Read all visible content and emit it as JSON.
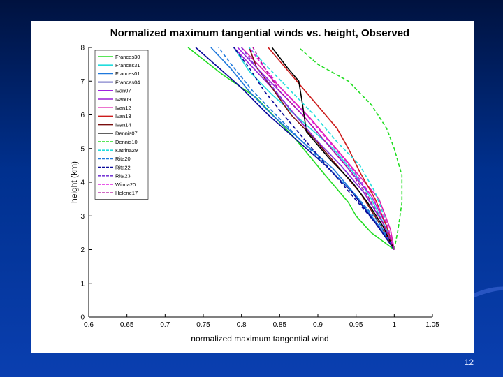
{
  "slide": {
    "page_number": "12"
  },
  "chart_data": {
    "type": "line",
    "title": "Normalized maximum tangential winds vs. height, Observed",
    "xlabel": "normalized maximum tangential wind",
    "ylabel": "height (km)",
    "xlim": [
      0.6,
      1.05
    ],
    "ylim": [
      0,
      8
    ],
    "xticks": [
      "0.6",
      "0.65",
      "0.7",
      "0.75",
      "0.8",
      "0.85",
      "0.9",
      "0.95",
      "1",
      "1.05"
    ],
    "yticks": [
      "0",
      "1",
      "2",
      "3",
      "4",
      "5",
      "6",
      "7",
      "8"
    ],
    "legend_position": "upper-left",
    "series": [
      {
        "name": "Frances30",
        "color": "#22dd22",
        "dash": "solid",
        "x": [
          1.0,
          0.97,
          0.95,
          0.94,
          0.91,
          0.87,
          0.82,
          0.775,
          0.73
        ],
        "y": [
          2,
          2.5,
          3.0,
          3.4,
          4.2,
          5.3,
          6.5,
          7.2,
          8
        ]
      },
      {
        "name": "Frances31",
        "color": "#22dddd",
        "dash": "solid",
        "x": [
          1.0,
          0.99,
          0.97,
          0.95,
          0.92,
          0.88,
          0.84,
          0.81,
          0.79
        ],
        "y": [
          2,
          2.6,
          3.5,
          4.2,
          5.0,
          5.8,
          6.6,
          7.3,
          8
        ]
      },
      {
        "name": "Frances01",
        "color": "#1e78dc",
        "dash": "solid",
        "x": [
          1.0,
          0.98,
          0.95,
          0.92,
          0.88,
          0.84,
          0.81,
          0.785,
          0.76
        ],
        "y": [
          2,
          2.7,
          3.6,
          4.4,
          5.2,
          6.0,
          6.7,
          7.4,
          8
        ]
      },
      {
        "name": "Frances04",
        "color": "#0a0a9a",
        "dash": "solid",
        "x": [
          1.0,
          0.975,
          0.945,
          0.91,
          0.87,
          0.835,
          0.8,
          0.77,
          0.74
        ],
        "y": [
          2,
          2.8,
          3.7,
          4.5,
          5.3,
          6.0,
          6.8,
          7.4,
          8
        ]
      },
      {
        "name": "Ivan07",
        "color": "#a020e0",
        "dash": "solid",
        "x": [
          1.0,
          0.99,
          0.97,
          0.94,
          0.91,
          0.88,
          0.85,
          0.82,
          0.795
        ],
        "y": [
          2,
          2.7,
          3.6,
          4.4,
          5.2,
          6.0,
          6.7,
          7.4,
          8
        ]
      },
      {
        "name": "Ivan09",
        "color": "#9b1fd6",
        "dash": "solid",
        "x": [
          1.0,
          0.985,
          0.96,
          0.93,
          0.9,
          0.87,
          0.84,
          0.815,
          0.79
        ],
        "y": [
          2,
          2.8,
          3.7,
          4.5,
          5.2,
          6.0,
          6.8,
          7.4,
          8
        ]
      },
      {
        "name": "Ivan12",
        "color": "#e020b0",
        "dash": "solid",
        "x": [
          1.0,
          0.995,
          0.98,
          0.95,
          0.92,
          0.89,
          0.86,
          0.83,
          0.8
        ],
        "y": [
          2,
          2.6,
          3.5,
          4.3,
          5.1,
          5.9,
          6.6,
          7.3,
          8
        ]
      },
      {
        "name": "Ivan13",
        "color": "#cc1b1b",
        "dash": "solid",
        "x": [
          1.0,
          0.99,
          0.975,
          0.955,
          0.94,
          0.925,
          0.895,
          0.865,
          0.835
        ],
        "y": [
          2,
          2.7,
          3.5,
          4.3,
          5.0,
          5.6,
          6.4,
          7.2,
          8
        ]
      },
      {
        "name": "Ivan14",
        "color": "#7a0f0f",
        "dash": "solid",
        "x": [
          1.0,
          0.98,
          0.955,
          0.925,
          0.895,
          0.865,
          0.84,
          0.82,
          0.81
        ],
        "y": [
          2,
          2.8,
          3.7,
          4.5,
          5.3,
          6.0,
          6.8,
          7.4,
          8
        ]
      },
      {
        "name": "Dennis07",
        "color": "#000000",
        "dash": "solid",
        "x": [
          1.0,
          0.985,
          0.965,
          0.945,
          0.915,
          0.885,
          0.88,
          0.875,
          0.86,
          0.84
        ],
        "y": [
          2,
          2.7,
          3.4,
          4.0,
          4.7,
          5.5,
          6.3,
          7.0,
          7.4,
          8
        ]
      },
      {
        "name": "Dennis10",
        "color": "#22dd22",
        "dash": "dashed",
        "x": [
          1.0,
          1.005,
          1.01,
          1.01,
          1.0,
          0.99,
          0.97,
          0.94,
          0.9,
          0.875
        ],
        "y": [
          2,
          2.6,
          3.4,
          4.2,
          5.0,
          5.6,
          6.3,
          7.0,
          7.5,
          8
        ]
      },
      {
        "name": "Katrina29",
        "color": "#22dddd",
        "dash": "dashed",
        "x": [
          1.0,
          0.99,
          0.975,
          0.955,
          0.925,
          0.895,
          0.865,
          0.835,
          0.81
        ],
        "y": [
          2,
          2.8,
          3.7,
          4.5,
          5.2,
          6.0,
          6.7,
          7.4,
          8
        ]
      },
      {
        "name": "Rita20",
        "color": "#1e78dc",
        "dash": "dashed",
        "x": [
          1.0,
          0.98,
          0.95,
          0.915,
          0.88,
          0.845,
          0.815,
          0.79,
          0.77
        ],
        "y": [
          2,
          2.8,
          3.6,
          4.4,
          5.2,
          6.0,
          6.7,
          7.4,
          8
        ]
      },
      {
        "name": "Rita22",
        "color": "#0a0a9a",
        "dash": "dashed",
        "x": [
          1.0,
          0.975,
          0.945,
          0.915,
          0.885,
          0.855,
          0.83,
          0.81,
          0.79
        ],
        "y": [
          2,
          2.8,
          3.6,
          4.4,
          5.2,
          6.0,
          6.7,
          7.4,
          8
        ]
      },
      {
        "name": "Rita23",
        "color": "#7a3cd6",
        "dash": "dashed",
        "x": [
          1.0,
          0.985,
          0.96,
          0.93,
          0.9,
          0.87,
          0.845,
          0.82,
          0.8
        ],
        "y": [
          2,
          2.8,
          3.7,
          4.5,
          5.2,
          6.0,
          6.7,
          7.4,
          8
        ]
      },
      {
        "name": "Wilma20",
        "color": "#e020e0",
        "dash": "dashed",
        "x": [
          1.0,
          0.99,
          0.97,
          0.945,
          0.915,
          0.885,
          0.855,
          0.83,
          0.81
        ],
        "y": [
          2,
          2.8,
          3.6,
          4.4,
          5.2,
          6.0,
          6.7,
          7.4,
          8
        ]
      },
      {
        "name": "Helene17",
        "color": "#b0109c",
        "dash": "dashed",
        "x": [
          1.0,
          0.985,
          0.965,
          0.94,
          0.91,
          0.88,
          0.85,
          0.83,
          0.815
        ],
        "y": [
          2,
          2.8,
          3.6,
          4.4,
          5.2,
          6.0,
          6.7,
          7.4,
          8
        ]
      }
    ]
  }
}
